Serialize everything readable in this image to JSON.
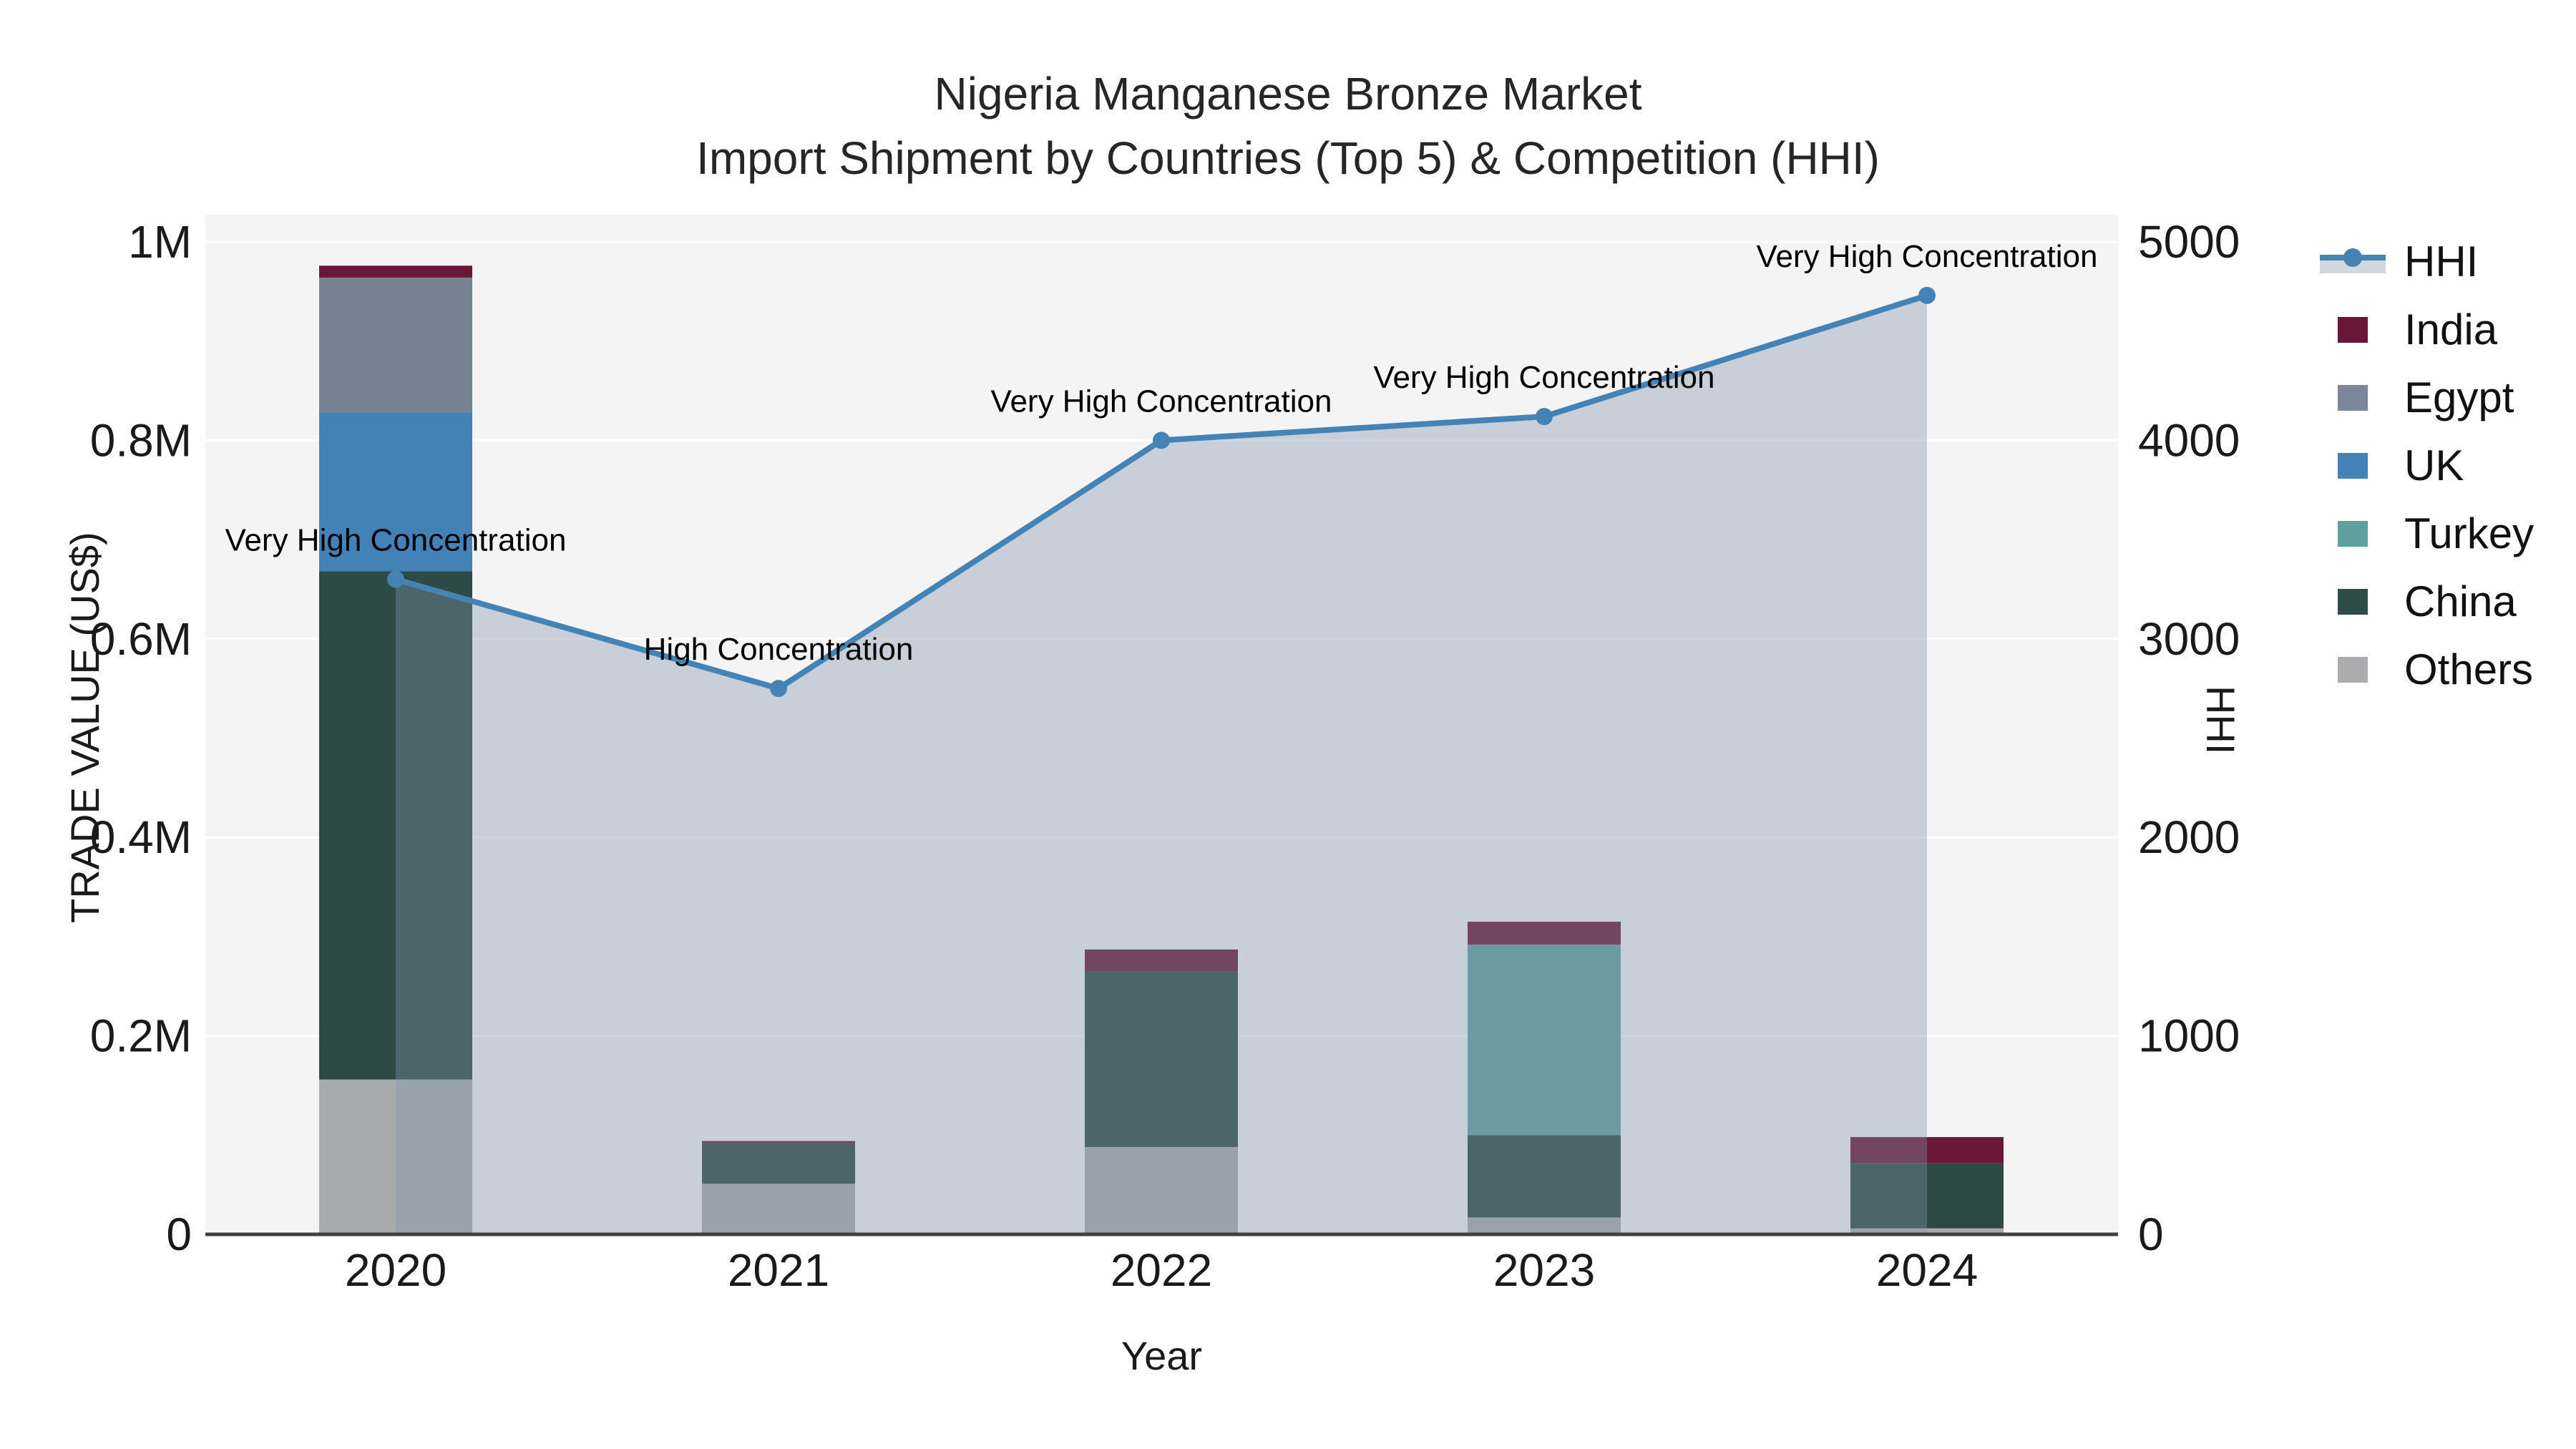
{
  "title": {
    "line1": "Nigeria Manganese Bronze Market",
    "line2": "Import Shipment by Countries (Top 5) & Competition (HHI)"
  },
  "axes": {
    "x_label": "Year",
    "left_label": "TRADE VALUE (US$)",
    "right_label": "HHI"
  },
  "legend": {
    "items": [
      {
        "key": "hhi",
        "label": "HHI",
        "type": "line",
        "color": "#4483b6"
      },
      {
        "key": "india",
        "label": "India",
        "type": "swatch",
        "color": "#691638"
      },
      {
        "key": "egypt",
        "label": "Egypt",
        "type": "swatch",
        "color": "#7b8698"
      },
      {
        "key": "uk",
        "label": "UK",
        "type": "swatch",
        "color": "#4382b6"
      },
      {
        "key": "turkey",
        "label": "Turkey",
        "type": "swatch",
        "color": "#5f9f9d"
      },
      {
        "key": "china",
        "label": "China",
        "type": "swatch",
        "color": "#2e4c47"
      },
      {
        "key": "others",
        "label": "Others",
        "type": "swatch",
        "color": "#aaacae"
      }
    ]
  },
  "chart_data": {
    "type": "combo_stacked_bar_line_area",
    "title": "Nigeria Manganese Bronze Market",
    "subtitle": "Import Shipment by Countries (Top 5) & Competition (HHI)",
    "xlabel": "Year",
    "ylabel_left": "TRADE VALUE (US$)",
    "ylabel_right": "HHI",
    "categories": [
      "2020",
      "2021",
      "2022",
      "2023",
      "2024"
    ],
    "bar_unit": "US$",
    "bar_series_bottom_to_top": [
      {
        "name": "Others",
        "color": "#a9aaac",
        "values": [
          156000,
          51000,
          88000,
          17000,
          6000
        ]
      },
      {
        "name": "China",
        "color": "#2d4a45",
        "values": [
          512000,
          41000,
          177000,
          83000,
          66000
        ]
      },
      {
        "name": "Turkey",
        "color": "#5f9f9d",
        "values": [
          0,
          0,
          0,
          192000,
          0
        ]
      },
      {
        "name": "UK",
        "color": "#4382b6",
        "values": [
          160000,
          0,
          0,
          0,
          0
        ]
      },
      {
        "name": "Egypt",
        "color": "#768290",
        "values": [
          136000,
          0,
          0,
          0,
          0
        ]
      },
      {
        "name": "India",
        "color": "#691638",
        "values": [
          12000,
          2000,
          22000,
          23000,
          26000
        ]
      }
    ],
    "line_series": {
      "name": "HHI",
      "axis": "right",
      "color": "#4483b6",
      "area_color": "rgba(130,147,170,0.38)",
      "values": [
        3300,
        2750,
        4000,
        4120,
        4730
      ],
      "annotations": [
        "Very High Concentration",
        "High Concentration",
        "Very High Concentration",
        "Very High Concentration",
        "Very High Concentration"
      ]
    },
    "left_axis": {
      "ticks": [
        "0",
        "0.2M",
        "0.4M",
        "0.6M",
        "0.8M",
        "1M"
      ],
      "max": 1000000
    },
    "right_axis": {
      "ticks": [
        "0",
        "1000",
        "2000",
        "3000",
        "4000",
        "5000"
      ],
      "max": 5000
    },
    "grid": true,
    "legend_position": "right",
    "plot_background": "#f4f4f4"
  }
}
